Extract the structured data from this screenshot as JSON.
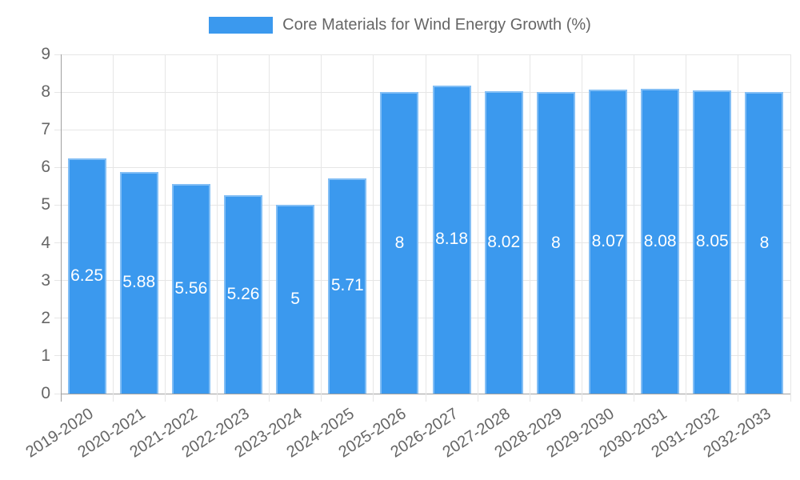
{
  "colors": {
    "bar": "#3b99ee",
    "bar_border": "#82bef5",
    "grid": "#e6e6e6",
    "axis": "#a0a0a0",
    "tick_text": "#666666",
    "value_text": "#ffffff"
  },
  "chart_data": {
    "type": "bar",
    "title": "Core Materials for Wind Energy Growth (%)",
    "categories": [
      "2019-2020",
      "2020-2021",
      "2021-2022",
      "2022-2023",
      "2023-2024",
      "2024-2025",
      "2025-2026",
      "2026-2027",
      "2027-2028",
      "2028-2029",
      "2029-2030",
      "2030-2031",
      "2031-2032",
      "2032-2033"
    ],
    "values": [
      6.25,
      5.88,
      5.56,
      5.26,
      5,
      5.71,
      8,
      8.18,
      8.02,
      8,
      8.07,
      8.08,
      8.05,
      8
    ],
    "xlabel": "",
    "ylabel": "",
    "ylim": [
      0,
      9
    ],
    "ytick_step": 1,
    "grid": true,
    "legend_position": "top",
    "value_labels_inside_bars": true
  }
}
